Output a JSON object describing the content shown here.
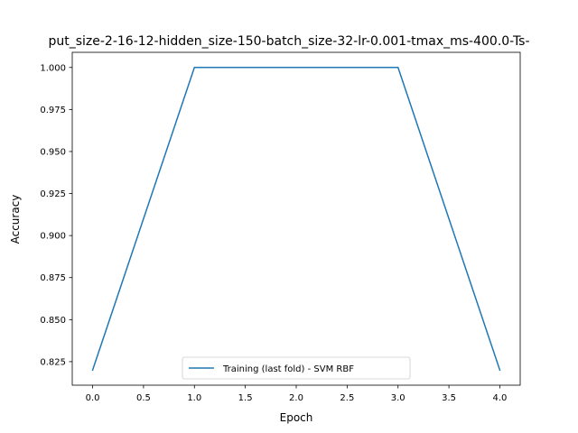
{
  "chart_data": {
    "type": "line",
    "title": "put_size-2-16-12-hidden_size-150-batch_size-32-lr-0.001-tmax_ms-400.0-Ts-",
    "xlabel": "Epoch",
    "ylabel": "Accuracy",
    "x": [
      0,
      1,
      2,
      3,
      4
    ],
    "series": [
      {
        "name": "Training (last fold) - SVM RBF",
        "color": "#1f77b4",
        "values": [
          0.82,
          1.0,
          1.0,
          1.0,
          0.82
        ]
      }
    ],
    "xlim": [
      -0.2,
      4.2
    ],
    "ylim": [
      0.811,
      1.009
    ],
    "xticks": [
      0.0,
      0.5,
      1.0,
      1.5,
      2.0,
      2.5,
      3.0,
      3.5,
      4.0
    ],
    "xtick_labels": [
      "0.0",
      "0.5",
      "1.0",
      "1.5",
      "2.0",
      "2.5",
      "3.0",
      "3.5",
      "4.0"
    ],
    "yticks": [
      0.825,
      0.85,
      0.875,
      0.9,
      0.925,
      0.95,
      0.975,
      1.0
    ],
    "ytick_labels": [
      "0.825",
      "0.850",
      "0.875",
      "0.900",
      "0.925",
      "0.950",
      "0.975",
      "1.000"
    ],
    "grid": false,
    "legend_position": "lower center"
  }
}
